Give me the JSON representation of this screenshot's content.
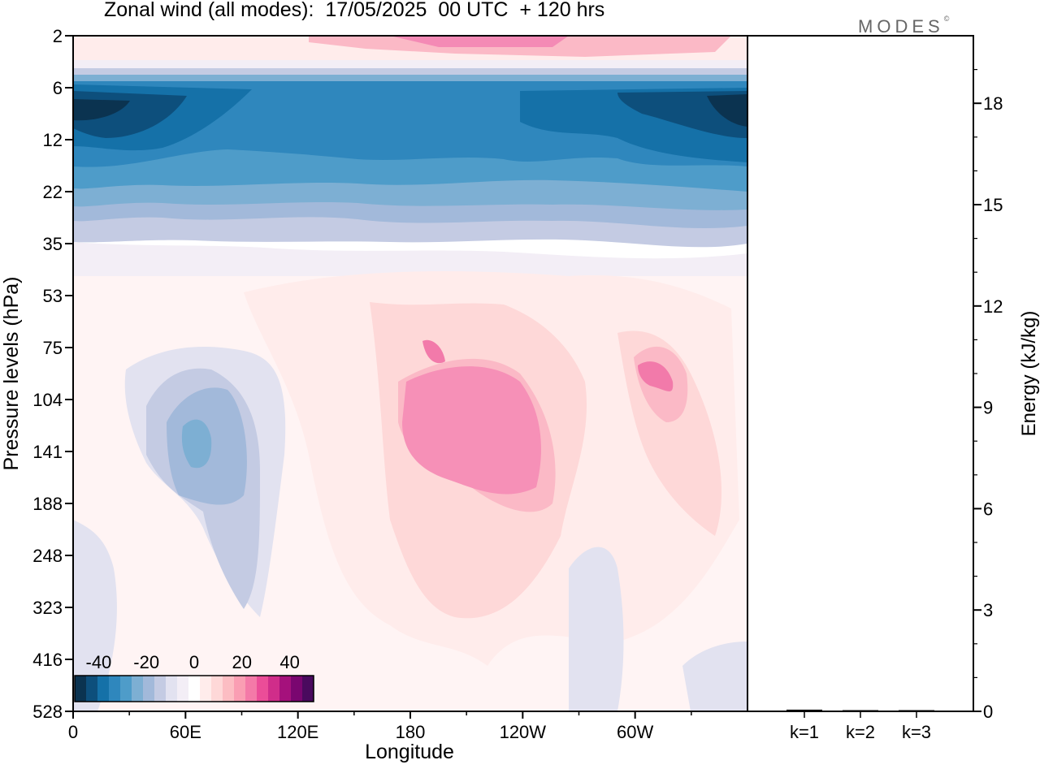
{
  "title": "Zonal wind (all modes):  17/05/2025  00 UTC  + 120 hrs",
  "logo": {
    "text": "MODES",
    "mark": "©"
  },
  "chart_data": [
    {
      "type": "heatmap",
      "title": "Zonal wind (all modes):  17/05/2025  00 UTC  + 120 hrs",
      "xlabel": "Longitude",
      "ylabel": "Pressure levels (hPa)",
      "x_ticks": [
        "0",
        "60E",
        "120E",
        "180",
        "120W",
        "60W"
      ],
      "x_tick_values": [
        0,
        60,
        120,
        180,
        240,
        300
      ],
      "xlim": [
        0,
        360
      ],
      "y_ticks": [
        "2",
        "6",
        "12",
        "22",
        "35",
        "53",
        "75",
        "104",
        "141",
        "188",
        "248",
        "323",
        "416",
        "528"
      ],
      "y_scale": "model levels (log-like pressure)",
      "colorbar": {
        "ticks": [
          "-40",
          "-20",
          "0",
          "20",
          "40"
        ],
        "tick_values": [
          -40,
          -20,
          0,
          20,
          40
        ],
        "range": [
          -50,
          50
        ],
        "step": 5,
        "placement": "bottom-left inside plot",
        "colors": [
          "#0b3350",
          "#0d4f7c",
          "#1571a8",
          "#2f87bd",
          "#4e9cc9",
          "#7dafd3",
          "#a2b9da",
          "#c4cbe3",
          "#e2e2f0",
          "#f3eef6",
          "#ffffff",
          "#ffeceb",
          "#fed8d8",
          "#fcbdc3",
          "#fa9eb3",
          "#f47aa8",
          "#eb4d98",
          "#d02d8a",
          "#a5117c",
          "#7a0670",
          "#4a0a5e"
        ]
      },
      "fields": [
        {
          "lon": 180,
          "lat_level": "2-3 hPa",
          "u": 25
        },
        {
          "lon": 190,
          "lat_level": "8 hPa",
          "u": -35
        },
        {
          "lon": 350,
          "lat_level": "9 hPa",
          "u": -45
        },
        {
          "lon": 5,
          "lat_level": "9 hPa",
          "u": -45
        },
        {
          "lon": 60,
          "lat_level": "141 hPa",
          "u": -20
        },
        {
          "lon": 205,
          "lat_level": "141 hPa",
          "u": 20
        },
        {
          "lon": 315,
          "lat_level": "104 hPa",
          "u": 25
        }
      ],
      "grid": false
    },
    {
      "type": "bar",
      "categories": [
        "k=1",
        "k=2",
        "k=3"
      ],
      "values": [
        0.05,
        0.03,
        0.03
      ],
      "ylabel": "Energy (kJ/kg)",
      "y_ticks": [
        "0",
        "3",
        "6",
        "9",
        "12",
        "15",
        "18"
      ],
      "y_tick_values": [
        0,
        3,
        6,
        9,
        12,
        15,
        18
      ],
      "ylim": [
        0,
        20
      ],
      "grid": false
    }
  ]
}
